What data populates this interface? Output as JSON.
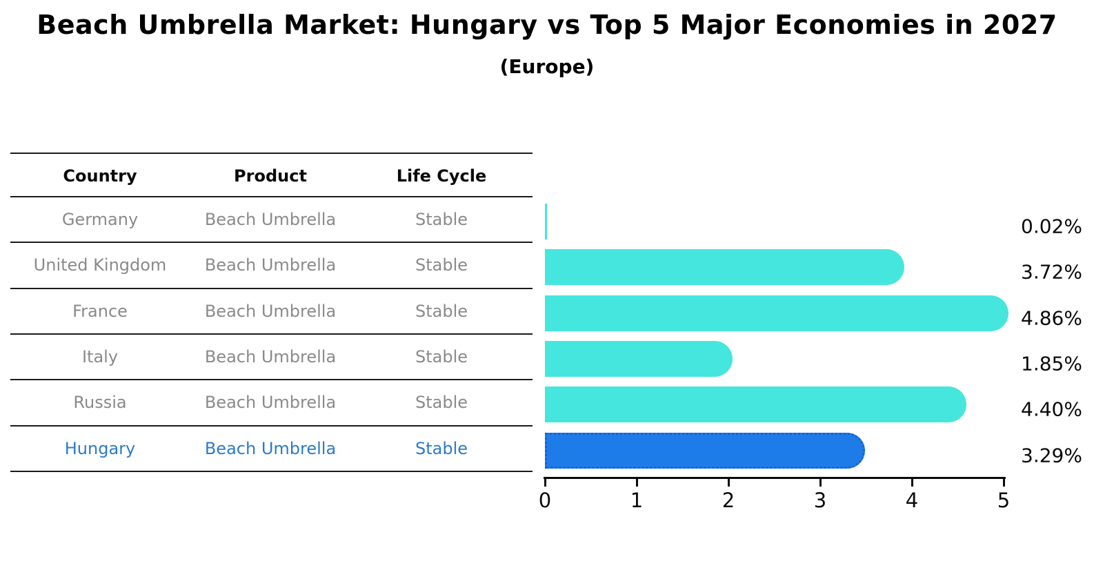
{
  "title": "Beach Umbrella Market: Hungary vs Top 5 Major Economies in 2027",
  "subtitle": "(Europe)",
  "table": {
    "headers": [
      "Country",
      "Product",
      "Life Cycle"
    ],
    "rows": [
      {
        "country": "Germany",
        "product": "Beach Umbrella",
        "life_cycle": "Stable",
        "highlight": false
      },
      {
        "country": "United Kingdom",
        "product": "Beach Umbrella",
        "life_cycle": "Stable",
        "highlight": false
      },
      {
        "country": "France",
        "product": "Beach Umbrella",
        "life_cycle": "Stable",
        "highlight": false
      },
      {
        "country": "Italy",
        "product": "Beach Umbrella",
        "life_cycle": "Stable",
        "highlight": false
      },
      {
        "country": "Russia",
        "product": "Beach Umbrella",
        "life_cycle": "Stable",
        "highlight": true
      }
    ],
    "highlight_row": {
      "country": "Hungary",
      "product": "Beach Umbrella",
      "life_cycle": "Stable"
    }
  },
  "chart_data": {
    "type": "bar",
    "orientation": "horizontal",
    "title": "Beach Umbrella Market: Hungary vs Top 5 Major Economies in 2027",
    "subtitle": "(Europe)",
    "categories": [
      "Germany",
      "United Kingdom",
      "France",
      "Italy",
      "Russia",
      "Hungary"
    ],
    "values": [
      0.02,
      3.72,
      4.86,
      1.85,
      4.4,
      3.29
    ],
    "value_labels": [
      "0.02%",
      "3.72%",
      "4.86%",
      "1.85%",
      "4.40%",
      "3.29%"
    ],
    "xlim": [
      0,
      5
    ],
    "x_ticks": [
      "0",
      "1",
      "2",
      "3",
      "4",
      "5"
    ],
    "grid": false,
    "legend": false,
    "highlight_index": 5,
    "bar_color": "#45e6dd",
    "highlight_bar_color": "#1e7ce8",
    "highlight_border_color": "#1761d6",
    "highlight_text_color": "#2b7bc9",
    "text_color_muted": "#8a8a8a",
    "text_color": "#000000"
  }
}
